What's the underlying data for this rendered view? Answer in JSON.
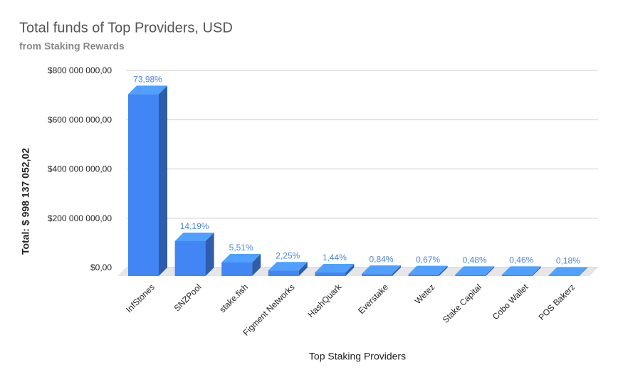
{
  "chart_data": {
    "type": "bar3d",
    "title": "Total funds of Top Providers, USD",
    "subtitle": "from Staking Rewards",
    "x_label": "Top Staking Providers",
    "y_label": "Total: $ 998 137 052,02",
    "categories": [
      "InfStones",
      "SNZPool",
      "stake.fish",
      "Figment Networks",
      "HashQuark",
      "Everstake",
      "Wetez",
      "Stake Capital",
      "Cobo Wallet",
      "POS Bakerz"
    ],
    "values": [
      738421791,
      141635648,
      54997352,
      22458084,
      14373174,
      8384351,
      6687518,
      4791058,
      4591430,
      1796647
    ],
    "value_labels": [
      "73,98%",
      "14,19%",
      "5,51%",
      "2,25%",
      "1,44%",
      "0,84%",
      "0,67%",
      "0,48%",
      "0,46%",
      "0,18%"
    ],
    "color": "#4285f4",
    "ylim": [
      0,
      800000000
    ],
    "yticks": [
      {
        "value": 0,
        "label": "$0,00"
      },
      {
        "value": 200000000,
        "label": "$200 000 000,00"
      },
      {
        "value": 400000000,
        "label": "$400 000 000,00"
      },
      {
        "value": 600000000,
        "label": "$600 000 000,00"
      },
      {
        "value": 800000000,
        "label": "$800 000 000,00"
      }
    ],
    "grid": true
  }
}
